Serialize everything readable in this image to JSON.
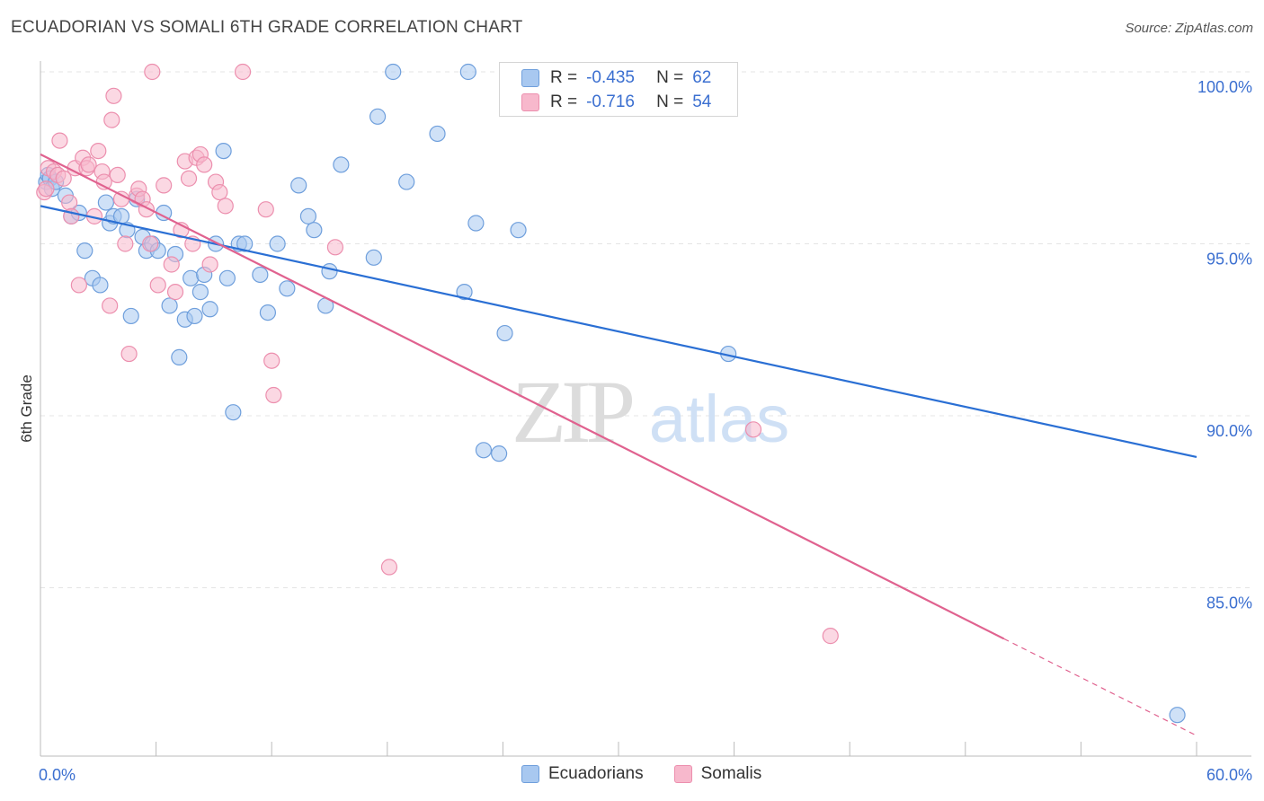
{
  "title": "ECUADORIAN VS SOMALI 6TH GRADE CORRELATION CHART",
  "source": "Source: ZipAtlas.com",
  "watermark": {
    "zip": "ZIP",
    "atlas": "atlas"
  },
  "colors": {
    "ecuadorian_fill": "#a8c8f0",
    "ecuadorian_stroke": "#6f9fdc",
    "ecuadorian_line": "#2a6fd4",
    "somali_fill": "#f7b8cc",
    "somali_stroke": "#ec8fae",
    "somali_line": "#e0628f",
    "axis_value": "#3b6fd0"
  },
  "stats": {
    "rows": [
      {
        "r_label": "R =",
        "r_value": "-0.435",
        "n_label": "N =",
        "n_value": "62"
      },
      {
        "r_label": "R =",
        "r_value": "-0.716",
        "n_label": "N =",
        "n_value": "54"
      }
    ]
  },
  "chart_data": {
    "type": "scatter",
    "title": "ECUADORIAN VS SOMALI 6TH GRADE CORRELATION CHART",
    "xlabel": "",
    "ylabel": "6th Grade",
    "xlim": [
      0,
      60
    ],
    "ylim": [
      80.5,
      101
    ],
    "x_tick_labels": [
      "0.0%",
      "60.0%"
    ],
    "y_ticks": [
      85,
      90,
      95,
      100
    ],
    "y_tick_labels": [
      "85.0%",
      "90.0%",
      "95.0%",
      "100.0%"
    ],
    "grid": true,
    "legend_position": "bottom",
    "series": [
      {
        "name": "Ecuadorians",
        "points": [
          [
            0.3,
            96.8
          ],
          [
            0.4,
            97.0
          ],
          [
            0.5,
            96.9
          ],
          [
            0.6,
            96.6
          ],
          [
            0.8,
            96.8
          ],
          [
            1.3,
            96.4
          ],
          [
            1.6,
            95.8
          ],
          [
            2.0,
            95.9
          ],
          [
            2.3,
            94.8
          ],
          [
            2.7,
            94.0
          ],
          [
            3.1,
            93.8
          ],
          [
            3.4,
            96.2
          ],
          [
            3.6,
            95.6
          ],
          [
            3.8,
            95.8
          ],
          [
            4.2,
            95.8
          ],
          [
            4.5,
            95.4
          ],
          [
            4.7,
            92.9
          ],
          [
            5.0,
            96.3
          ],
          [
            5.3,
            95.2
          ],
          [
            5.5,
            94.8
          ],
          [
            5.8,
            95.0
          ],
          [
            6.1,
            94.8
          ],
          [
            6.4,
            95.9
          ],
          [
            6.7,
            93.2
          ],
          [
            7.0,
            94.7
          ],
          [
            7.2,
            91.7
          ],
          [
            7.5,
            92.8
          ],
          [
            7.8,
            94.0
          ],
          [
            8.0,
            92.9
          ],
          [
            8.3,
            93.6
          ],
          [
            8.5,
            94.1
          ],
          [
            8.8,
            93.1
          ],
          [
            9.1,
            95.0
          ],
          [
            9.5,
            97.7
          ],
          [
            9.7,
            94.0
          ],
          [
            10.0,
            90.1
          ],
          [
            10.3,
            95.0
          ],
          [
            10.6,
            95.0
          ],
          [
            11.4,
            94.1
          ],
          [
            11.8,
            93.0
          ],
          [
            12.3,
            95.0
          ],
          [
            12.8,
            93.7
          ],
          [
            13.4,
            96.7
          ],
          [
            13.9,
            95.8
          ],
          [
            14.2,
            95.4
          ],
          [
            14.8,
            93.2
          ],
          [
            15.0,
            94.2
          ],
          [
            15.6,
            97.3
          ],
          [
            17.3,
            94.6
          ],
          [
            17.5,
            98.7
          ],
          [
            18.3,
            100.0
          ],
          [
            19.0,
            96.8
          ],
          [
            20.6,
            98.2
          ],
          [
            22.0,
            93.6
          ],
          [
            22.2,
            100.0
          ],
          [
            22.6,
            95.6
          ],
          [
            23.0,
            89.0
          ],
          [
            23.8,
            88.9
          ],
          [
            24.1,
            92.4
          ],
          [
            24.8,
            95.4
          ],
          [
            35.7,
            91.8
          ],
          [
            59.0,
            81.3
          ]
        ],
        "trend": {
          "x": [
            0,
            60
          ],
          "y": [
            96.1,
            88.8
          ]
        }
      },
      {
        "name": "Somalis",
        "points": [
          [
            0.2,
            96.5
          ],
          [
            0.3,
            96.6
          ],
          [
            0.4,
            97.2
          ],
          [
            0.7,
            97.1
          ],
          [
            0.9,
            97.0
          ],
          [
            1.0,
            98.0
          ],
          [
            1.2,
            96.9
          ],
          [
            1.5,
            96.2
          ],
          [
            1.6,
            95.8
          ],
          [
            1.8,
            97.2
          ],
          [
            2.0,
            93.8
          ],
          [
            2.2,
            97.5
          ],
          [
            2.4,
            97.2
          ],
          [
            2.5,
            97.3
          ],
          [
            2.8,
            95.8
          ],
          [
            3.0,
            97.7
          ],
          [
            3.2,
            97.1
          ],
          [
            3.3,
            96.8
          ],
          [
            3.6,
            93.2
          ],
          [
            3.7,
            98.6
          ],
          [
            3.8,
            99.3
          ],
          [
            4.0,
            97.0
          ],
          [
            4.2,
            96.3
          ],
          [
            4.4,
            95.0
          ],
          [
            4.6,
            91.8
          ],
          [
            5.0,
            96.4
          ],
          [
            5.1,
            96.6
          ],
          [
            5.3,
            96.3
          ],
          [
            5.5,
            96.0
          ],
          [
            5.7,
            95.0
          ],
          [
            5.8,
            100.0
          ],
          [
            6.1,
            93.8
          ],
          [
            6.4,
            96.7
          ],
          [
            6.8,
            94.4
          ],
          [
            7.0,
            93.6
          ],
          [
            7.3,
            95.4
          ],
          [
            7.5,
            97.4
          ],
          [
            7.7,
            96.9
          ],
          [
            7.9,
            95.0
          ],
          [
            8.1,
            97.5
          ],
          [
            8.3,
            97.6
          ],
          [
            8.5,
            97.3
          ],
          [
            8.8,
            94.4
          ],
          [
            9.1,
            96.8
          ],
          [
            9.3,
            96.5
          ],
          [
            9.6,
            96.1
          ],
          [
            10.5,
            100.0
          ],
          [
            11.7,
            96.0
          ],
          [
            12.0,
            91.6
          ],
          [
            12.1,
            90.6
          ],
          [
            15.3,
            94.9
          ],
          [
            18.1,
            85.6
          ],
          [
            37.0,
            89.6
          ],
          [
            41.0,
            83.6
          ]
        ],
        "trend": {
          "x": [
            0,
            60
          ],
          "y": [
            97.6,
            80.7
          ],
          "solid_until_x": 50.0
        }
      }
    ]
  }
}
